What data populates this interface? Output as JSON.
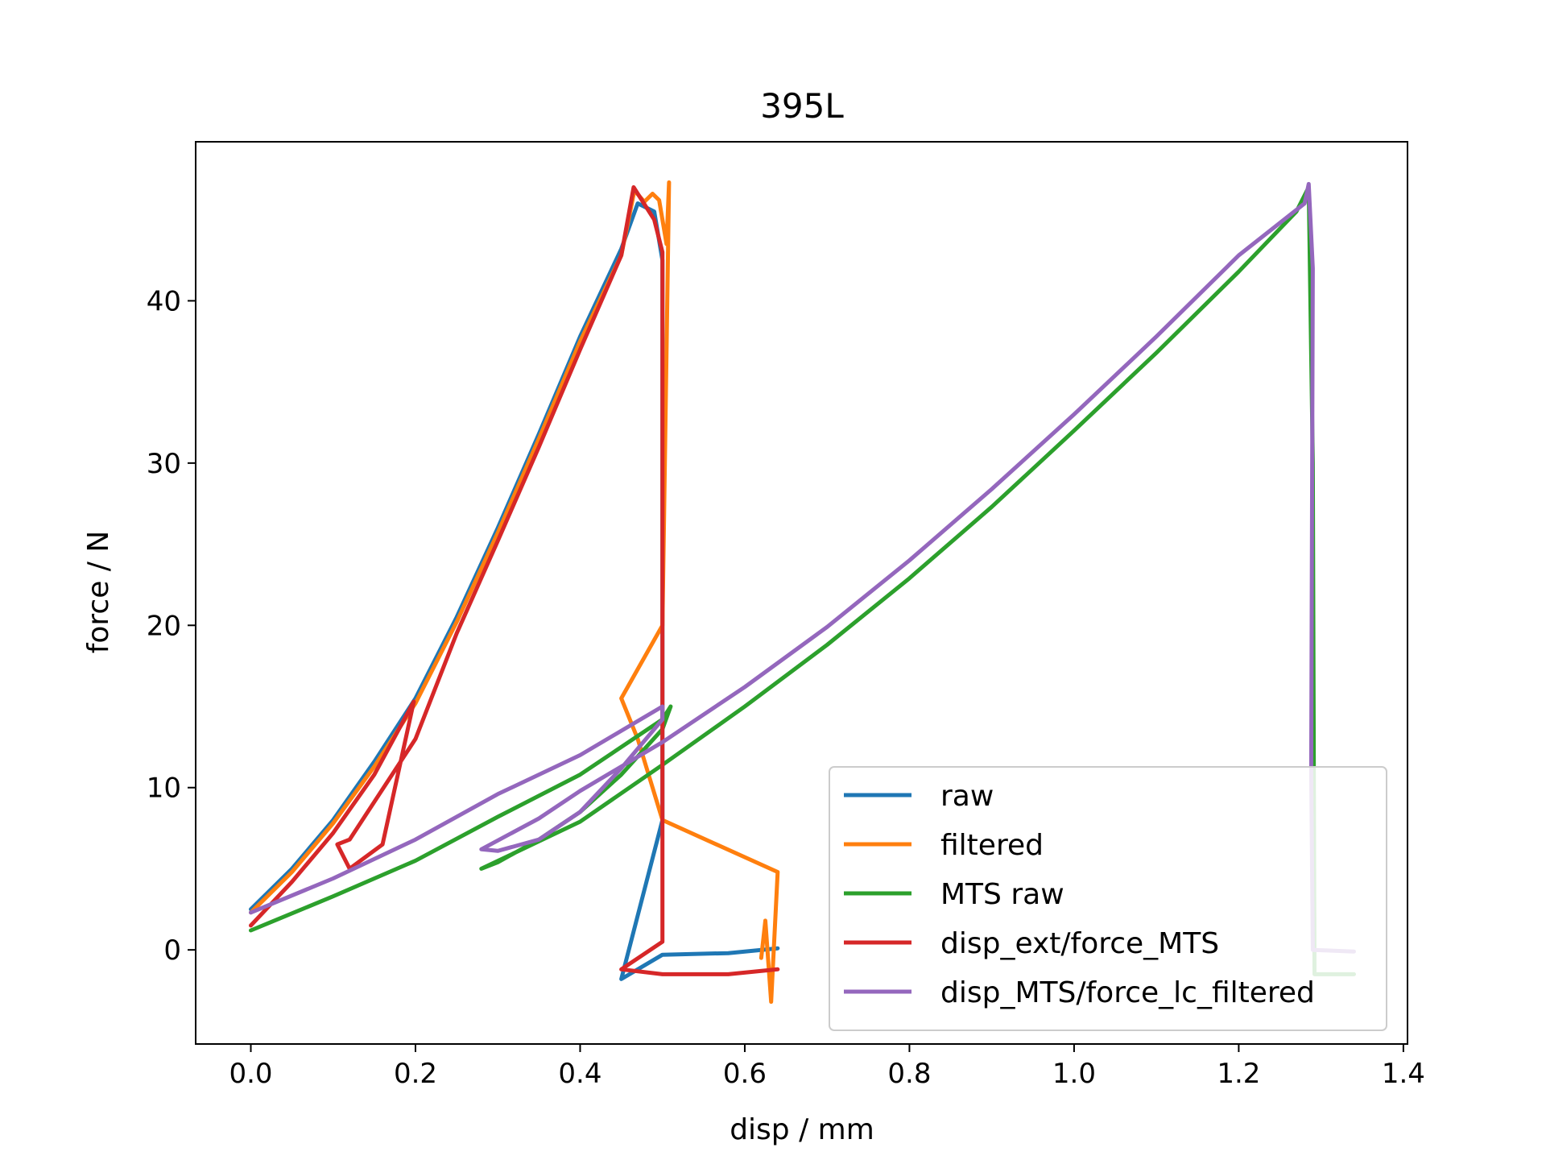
{
  "chart_data": {
    "type": "line",
    "title": "395L",
    "xlabel": "disp / mm",
    "ylabel": "force / N",
    "xlim": [
      -0.067,
      1.405
    ],
    "ylim": [
      -5.8,
      49.8
    ],
    "x_ticks": [
      0.0,
      0.2,
      0.4,
      0.6,
      0.8,
      1.0,
      1.2,
      1.4
    ],
    "x_tick_labels": [
      "0.0",
      "0.2",
      "0.4",
      "0.6",
      "0.8",
      "1.0",
      "1.2",
      "1.4"
    ],
    "y_ticks": [
      0,
      10,
      20,
      30,
      40
    ],
    "y_tick_labels": [
      "0",
      "10",
      "20",
      "30",
      "40"
    ],
    "grid": false,
    "legend_position": "lower-right",
    "series": [
      {
        "name": "raw",
        "color": "#1f77b4",
        "points": [
          [
            0.0,
            2.5
          ],
          [
            0.05,
            5.0
          ],
          [
            0.1,
            8.0
          ],
          [
            0.15,
            11.6
          ],
          [
            0.2,
            15.5
          ],
          [
            0.25,
            20.5
          ],
          [
            0.3,
            26.0
          ],
          [
            0.35,
            31.8
          ],
          [
            0.4,
            37.8
          ],
          [
            0.45,
            43.2
          ],
          [
            0.47,
            46.0
          ],
          [
            0.49,
            45.5
          ],
          [
            0.5,
            42.5
          ],
          [
            0.5,
            8.0
          ],
          [
            0.45,
            -1.8
          ],
          [
            0.5,
            -0.3
          ],
          [
            0.58,
            -0.2
          ],
          [
            0.62,
            0.0
          ],
          [
            0.64,
            0.1
          ]
        ]
      },
      {
        "name": "filtered",
        "color": "#ff7f0e",
        "points": [
          [
            0.0,
            2.3
          ],
          [
            0.05,
            4.8
          ],
          [
            0.1,
            7.8
          ],
          [
            0.15,
            11.3
          ],
          [
            0.2,
            15.2
          ],
          [
            0.25,
            20.2
          ],
          [
            0.3,
            25.7
          ],
          [
            0.35,
            31.5
          ],
          [
            0.4,
            37.5
          ],
          [
            0.45,
            42.8
          ],
          [
            0.466,
            46.8
          ],
          [
            0.478,
            46.1
          ],
          [
            0.488,
            46.6
          ],
          [
            0.496,
            46.2
          ],
          [
            0.505,
            43.5
          ],
          [
            0.508,
            47.3
          ],
          [
            0.5,
            20.0
          ],
          [
            0.45,
            15.5
          ],
          [
            0.47,
            13.0
          ],
          [
            0.5,
            8.0
          ],
          [
            0.64,
            4.8
          ],
          [
            0.632,
            -3.2
          ],
          [
            0.625,
            1.8
          ],
          [
            0.62,
            -0.5
          ]
        ]
      },
      {
        "name": "MTS raw",
        "color": "#2ca02c",
        "points": [
          [
            0.0,
            1.2
          ],
          [
            0.1,
            3.3
          ],
          [
            0.2,
            5.5
          ],
          [
            0.3,
            8.2
          ],
          [
            0.4,
            10.8
          ],
          [
            0.5,
            14.2
          ],
          [
            0.51,
            15.0
          ],
          [
            0.5,
            13.6
          ],
          [
            0.45,
            10.8
          ],
          [
            0.4,
            8.5
          ],
          [
            0.35,
            6.8
          ],
          [
            0.3,
            5.4
          ],
          [
            0.28,
            5.0
          ],
          [
            0.4,
            7.9
          ],
          [
            0.5,
            11.4
          ],
          [
            0.6,
            15.0
          ],
          [
            0.7,
            18.8
          ],
          [
            0.8,
            22.9
          ],
          [
            0.9,
            27.3
          ],
          [
            1.0,
            32.0
          ],
          [
            1.1,
            36.8
          ],
          [
            1.2,
            41.8
          ],
          [
            1.27,
            45.5
          ],
          [
            1.285,
            47.0
          ],
          [
            1.29,
            30.0
          ],
          [
            1.292,
            -1.5
          ],
          [
            1.34,
            -1.5
          ]
        ]
      },
      {
        "name": "disp_ext/force_MTS",
        "color": "#d62728",
        "points": [
          [
            0.0,
            1.5
          ],
          [
            0.05,
            4.2
          ],
          [
            0.1,
            7.2
          ],
          [
            0.15,
            10.8
          ],
          [
            0.198,
            15.3
          ],
          [
            0.16,
            6.5
          ],
          [
            0.12,
            5.0
          ],
          [
            0.105,
            6.5
          ],
          [
            0.12,
            6.8
          ],
          [
            0.2,
            13.0
          ],
          [
            0.25,
            19.5
          ],
          [
            0.3,
            25.2
          ],
          [
            0.35,
            31.0
          ],
          [
            0.4,
            37.0
          ],
          [
            0.45,
            42.8
          ],
          [
            0.465,
            47.0
          ],
          [
            0.49,
            45.0
          ],
          [
            0.5,
            43.0
          ],
          [
            0.5,
            0.5
          ],
          [
            0.45,
            -1.2
          ],
          [
            0.5,
            -1.5
          ],
          [
            0.58,
            -1.5
          ],
          [
            0.64,
            -1.2
          ]
        ]
      },
      {
        "name": "disp_MTS/force_lc_filtered",
        "color": "#9467bd",
        "points": [
          [
            0.0,
            2.3
          ],
          [
            0.1,
            4.4
          ],
          [
            0.2,
            6.8
          ],
          [
            0.3,
            9.6
          ],
          [
            0.4,
            12.0
          ],
          [
            0.5,
            15.0
          ],
          [
            0.5,
            14.2
          ],
          [
            0.45,
            11.2
          ],
          [
            0.4,
            8.5
          ],
          [
            0.35,
            6.8
          ],
          [
            0.3,
            6.1
          ],
          [
            0.28,
            6.2
          ],
          [
            0.35,
            8.1
          ],
          [
            0.4,
            9.8
          ],
          [
            0.5,
            12.8
          ],
          [
            0.6,
            16.2
          ],
          [
            0.7,
            19.9
          ],
          [
            0.8,
            24.0
          ],
          [
            0.9,
            28.4
          ],
          [
            1.0,
            33.0
          ],
          [
            1.1,
            37.8
          ],
          [
            1.2,
            42.8
          ],
          [
            1.28,
            46.0
          ],
          [
            1.285,
            47.2
          ],
          [
            1.29,
            42.0
          ],
          [
            1.288,
            11.0
          ],
          [
            1.29,
            0.0
          ],
          [
            1.34,
            -0.1
          ]
        ]
      }
    ]
  }
}
